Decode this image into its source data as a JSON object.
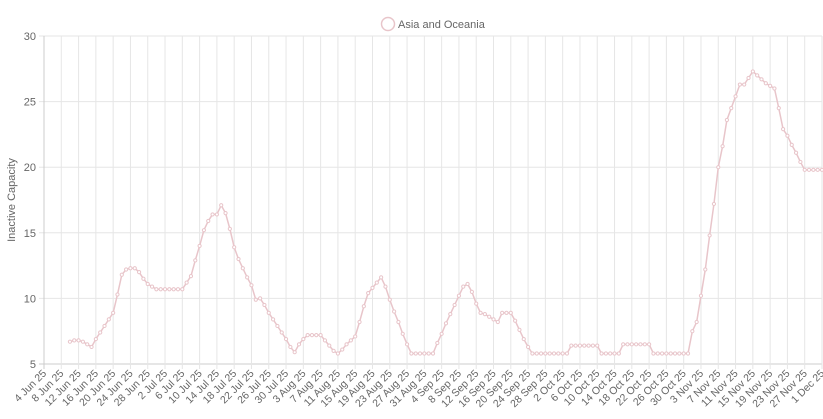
{
  "chart_data": {
    "type": "line",
    "title": "",
    "xlabel": "",
    "ylabel": "Inactive Capacity",
    "ylim": [
      5,
      30
    ],
    "yticks": [
      5,
      10,
      15,
      20,
      25,
      30
    ],
    "xlim": [
      "2025-06-04",
      "2025-12-01"
    ],
    "xtick_labels": [
      "4 Jun 25",
      "8 Jun 25",
      "12 Jun 25",
      "16 Jun 25",
      "20 Jun 25",
      "24 Jun 25",
      "28 Jun 25",
      "2 Jul 25",
      "6 Jul 25",
      "10 Jul 25",
      "14 Jul 25",
      "18 Jul 25",
      "22 Jul 25",
      "26 Jul 25",
      "30 Jul 25",
      "3 Aug 25",
      "7 Aug 25",
      "11 Aug 25",
      "15 Aug 25",
      "19 Aug 25",
      "23 Aug 25",
      "27 Aug 25",
      "31 Aug 25",
      "4 Sep 25",
      "8 Sep 25",
      "12 Sep 25",
      "16 Sep 25",
      "20 Sep 25",
      "24 Sep 25",
      "28 Sep 25",
      "2 Oct 25",
      "6 Oct 25",
      "10 Oct 25",
      "14 Oct 25",
      "18 Oct 25",
      "22 Oct 25",
      "26 Oct 25",
      "30 Oct 25",
      "3 Nov 25",
      "7 Nov 25",
      "11 Nov 25",
      "15 Nov 25",
      "19 Nov 25",
      "23 Nov 25",
      "27 Nov 25",
      "1 Dec 25"
    ],
    "grid": true,
    "legend_position": "top",
    "series": [
      {
        "name": "Asia and Oceania",
        "color": "#e8c5ca",
        "x": [
          "2025-06-10",
          "2025-06-11",
          "2025-06-12",
          "2025-06-13",
          "2025-06-14",
          "2025-06-15",
          "2025-06-16",
          "2025-06-17",
          "2025-06-18",
          "2025-06-19",
          "2025-06-20",
          "2025-06-21",
          "2025-06-22",
          "2025-06-23",
          "2025-06-24",
          "2025-06-25",
          "2025-06-26",
          "2025-06-27",
          "2025-06-28",
          "2025-06-29",
          "2025-06-30",
          "2025-07-01",
          "2025-07-02",
          "2025-07-03",
          "2025-07-04",
          "2025-07-05",
          "2025-07-06",
          "2025-07-07",
          "2025-07-08",
          "2025-07-09",
          "2025-07-10",
          "2025-07-11",
          "2025-07-12",
          "2025-07-13",
          "2025-07-14",
          "2025-07-15",
          "2025-07-16",
          "2025-07-17",
          "2025-07-18",
          "2025-07-19",
          "2025-07-20",
          "2025-07-21",
          "2025-07-22",
          "2025-07-23",
          "2025-07-24",
          "2025-07-25",
          "2025-07-26",
          "2025-07-27",
          "2025-07-28",
          "2025-07-29",
          "2025-07-30",
          "2025-07-31",
          "2025-08-01",
          "2025-08-02",
          "2025-08-03",
          "2025-08-04",
          "2025-08-05",
          "2025-08-06",
          "2025-08-07",
          "2025-08-08",
          "2025-08-09",
          "2025-08-10",
          "2025-08-11",
          "2025-08-12",
          "2025-08-13",
          "2025-08-14",
          "2025-08-15",
          "2025-08-16",
          "2025-08-17",
          "2025-08-18",
          "2025-08-19",
          "2025-08-20",
          "2025-08-21",
          "2025-08-22",
          "2025-08-23",
          "2025-08-24",
          "2025-08-25",
          "2025-08-26",
          "2025-08-27",
          "2025-08-28",
          "2025-08-29",
          "2025-08-30",
          "2025-08-31",
          "2025-09-01",
          "2025-09-02",
          "2025-09-03",
          "2025-09-04",
          "2025-09-05",
          "2025-09-06",
          "2025-09-07",
          "2025-09-08",
          "2025-09-09",
          "2025-09-10",
          "2025-09-11",
          "2025-09-12",
          "2025-09-13",
          "2025-09-14",
          "2025-09-15",
          "2025-09-16",
          "2025-09-17",
          "2025-09-18",
          "2025-09-19",
          "2025-09-20",
          "2025-09-21",
          "2025-09-22",
          "2025-09-23",
          "2025-09-24",
          "2025-09-25",
          "2025-09-26",
          "2025-09-27",
          "2025-09-28",
          "2025-09-29",
          "2025-09-30",
          "2025-10-01",
          "2025-10-02",
          "2025-10-03",
          "2025-10-04",
          "2025-10-05",
          "2025-10-06",
          "2025-10-07",
          "2025-10-08",
          "2025-10-09",
          "2025-10-10",
          "2025-10-11",
          "2025-10-12",
          "2025-10-13",
          "2025-10-14",
          "2025-10-15",
          "2025-10-16",
          "2025-10-17",
          "2025-10-18",
          "2025-10-19",
          "2025-10-20",
          "2025-10-21",
          "2025-10-22",
          "2025-10-23",
          "2025-10-24",
          "2025-10-25",
          "2025-10-26",
          "2025-10-27",
          "2025-10-28",
          "2025-10-29",
          "2025-10-30",
          "2025-10-31",
          "2025-11-01",
          "2025-11-02",
          "2025-11-03",
          "2025-11-04",
          "2025-11-05",
          "2025-11-06",
          "2025-11-07",
          "2025-11-08",
          "2025-11-09",
          "2025-11-10",
          "2025-11-11",
          "2025-11-12",
          "2025-11-13",
          "2025-11-14",
          "2025-11-15",
          "2025-11-16",
          "2025-11-17",
          "2025-11-18",
          "2025-11-19",
          "2025-11-20",
          "2025-11-21",
          "2025-11-22",
          "2025-11-23",
          "2025-11-24",
          "2025-11-25",
          "2025-11-26",
          "2025-11-27",
          "2025-11-28",
          "2025-11-29",
          "2025-11-30",
          "2025-12-01"
        ],
        "y": [
          6.7,
          6.8,
          6.8,
          6.7,
          6.5,
          6.3,
          6.9,
          7.4,
          7.9,
          8.4,
          8.9,
          10.3,
          11.8,
          12.2,
          12.3,
          12.3,
          12.0,
          11.5,
          11.1,
          10.9,
          10.7,
          10.7,
          10.7,
          10.7,
          10.7,
          10.7,
          10.7,
          11.2,
          11.7,
          12.9,
          14.0,
          15.2,
          15.9,
          16.4,
          16.4,
          17.1,
          16.5,
          15.3,
          13.9,
          13.0,
          12.3,
          11.6,
          11.0,
          9.9,
          10.0,
          9.5,
          8.9,
          8.4,
          7.9,
          7.4,
          6.9,
          6.3,
          5.9,
          6.5,
          6.9,
          7.2,
          7.2,
          7.2,
          7.2,
          6.8,
          6.4,
          6.0,
          5.8,
          6.1,
          6.5,
          6.8,
          7.1,
          8.2,
          9.4,
          10.4,
          10.8,
          11.2,
          11.6,
          10.9,
          9.9,
          9.0,
          8.2,
          7.3,
          6.5,
          5.8,
          5.8,
          5.8,
          5.8,
          5.8,
          5.8,
          6.6,
          7.3,
          8.1,
          8.8,
          9.5,
          10.2,
          10.9,
          11.1,
          10.5,
          9.6,
          8.9,
          8.8,
          8.6,
          8.4,
          8.2,
          8.9,
          8.9,
          8.9,
          8.3,
          7.6,
          6.9,
          6.3,
          5.8,
          5.8,
          5.8,
          5.8,
          5.8,
          5.8,
          5.8,
          5.8,
          5.8,
          6.4,
          6.4,
          6.4,
          6.4,
          6.4,
          6.4,
          6.4,
          5.8,
          5.8,
          5.8,
          5.8,
          5.8,
          6.5,
          6.5,
          6.5,
          6.5,
          6.5,
          6.5,
          6.5,
          5.8,
          5.8,
          5.8,
          5.8,
          5.8,
          5.8,
          5.8,
          5.8,
          5.8,
          7.5,
          8.2,
          10.2,
          12.2,
          14.8,
          17.2,
          20.0,
          21.6,
          23.6,
          24.5,
          25.4,
          26.3,
          26.3,
          26.8,
          27.3,
          27.0,
          26.7,
          26.4,
          26.2,
          26.0,
          24.5,
          22.9,
          22.4,
          21.7,
          21.1,
          20.4,
          19.8,
          19.8,
          19.8,
          19.8,
          19.8
        ]
      }
    ]
  }
}
